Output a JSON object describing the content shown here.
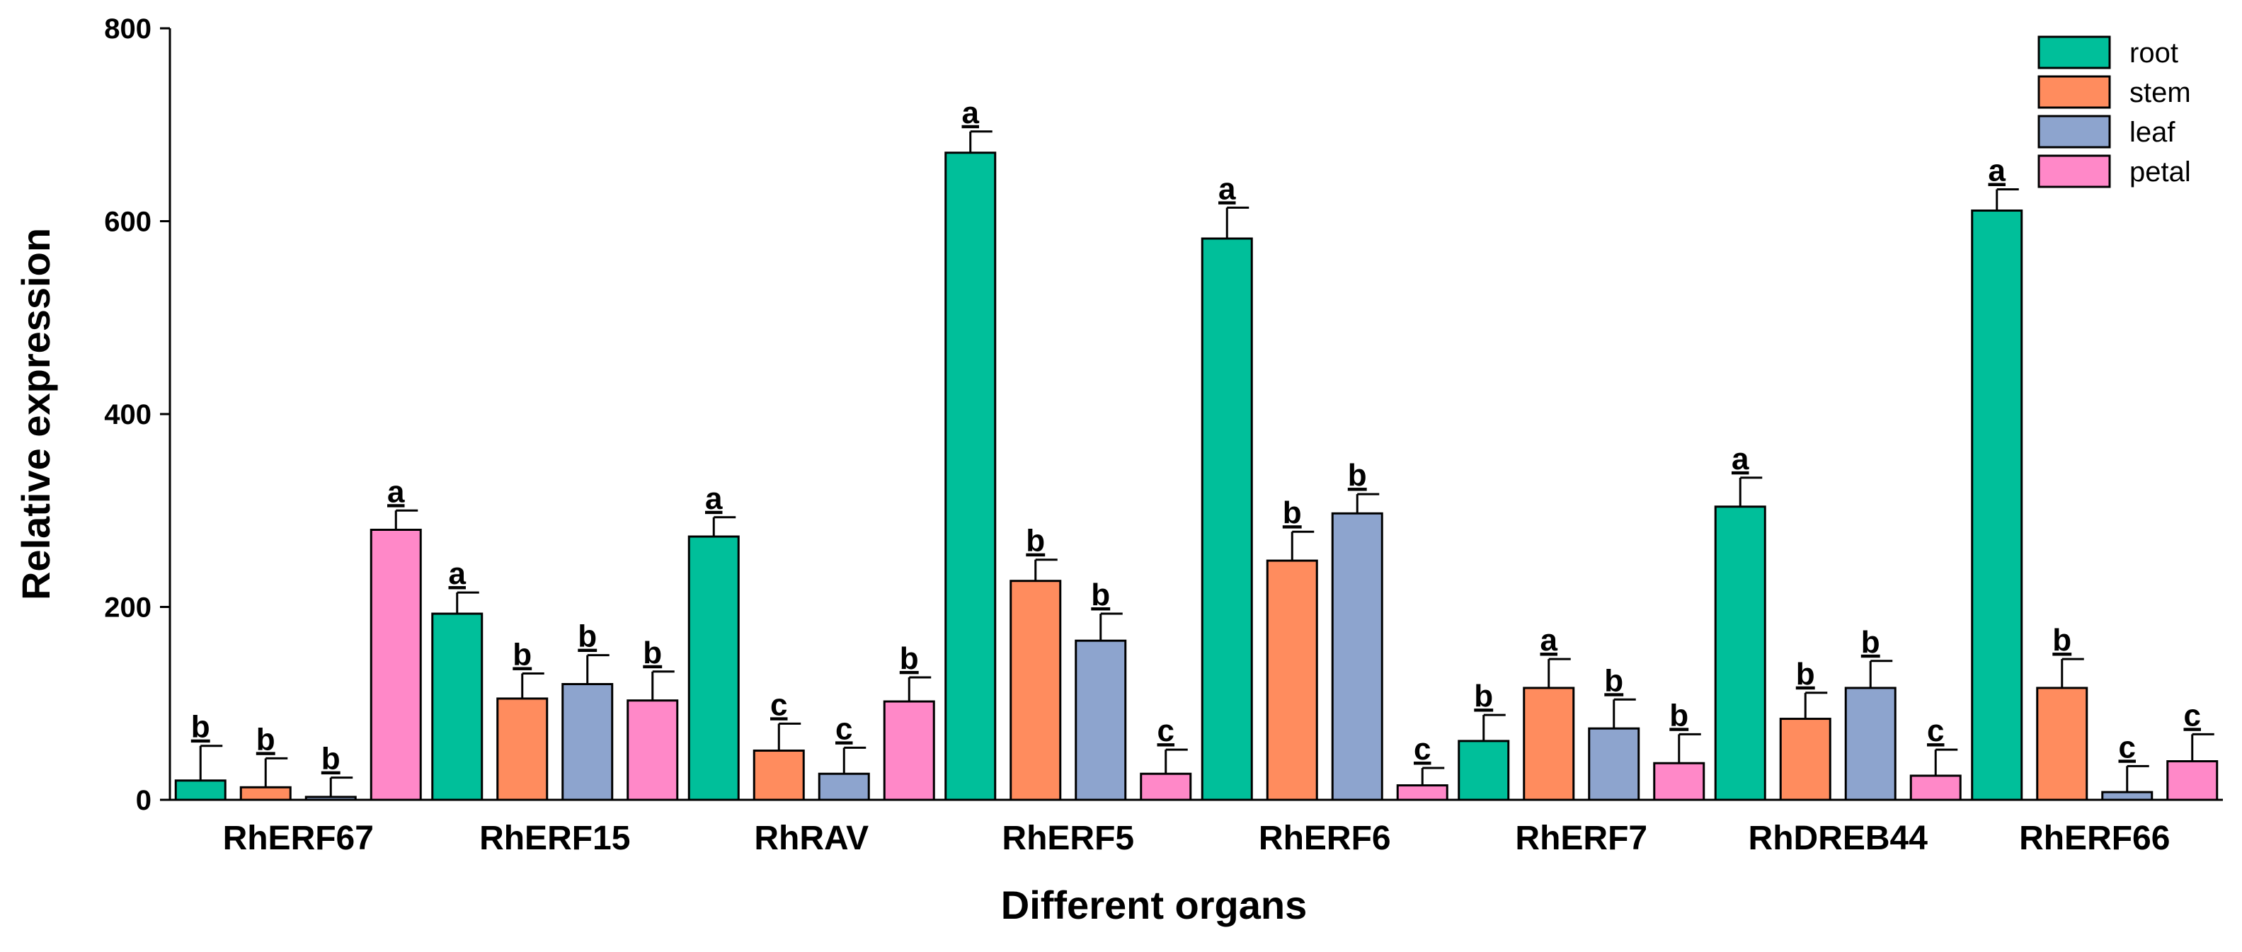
{
  "chart_data": {
    "type": "bar",
    "title": "",
    "xlabel": "Different organs",
    "ylabel": "Relative expression",
    "ylim": [
      0,
      800
    ],
    "yticks": [
      0,
      200,
      400,
      600,
      800
    ],
    "categories": [
      "RhERF67",
      "RhERF15",
      "RhRAV",
      "RhERF5",
      "RhERF6",
      "RhERF7",
      "RhDREB44",
      "RhERF66"
    ],
    "legend_position": "top-right",
    "grid": false,
    "series": [
      {
        "name": "root",
        "color": "#00BF9A",
        "values": [
          20,
          193,
          273,
          671,
          582,
          61,
          304,
          611
        ],
        "errors": [
          36,
          22,
          20,
          22,
          32,
          27,
          30,
          22
        ],
        "letters": [
          "b",
          "a",
          "a",
          "a",
          "a",
          "b",
          "a",
          "a"
        ]
      },
      {
        "name": "stem",
        "color": "#FF8C5E",
        "values": [
          13,
          105,
          51,
          227,
          248,
          116,
          84,
          116
        ],
        "errors": [
          30,
          26,
          28,
          22,
          30,
          30,
          27,
          30
        ],
        "letters": [
          "b",
          "b",
          "c",
          "b",
          "b",
          "a",
          "b",
          "b"
        ]
      },
      {
        "name": "leaf",
        "color": "#8DA4CE",
        "values": [
          3,
          120,
          27,
          165,
          297,
          74,
          116,
          8
        ],
        "errors": [
          20,
          30,
          27,
          28,
          20,
          30,
          28,
          27
        ],
        "letters": [
          "b",
          "b",
          "c",
          "b",
          "b",
          "b",
          "b",
          "c"
        ]
      },
      {
        "name": "petal",
        "color": "#FF88C8",
        "values": [
          280,
          103,
          102,
          27,
          15,
          38,
          25,
          40
        ],
        "errors": [
          20,
          30,
          25,
          25,
          18,
          30,
          27,
          28
        ],
        "letters": [
          "a",
          "b",
          "b",
          "c",
          "c",
          "b",
          "c",
          "c"
        ]
      }
    ]
  }
}
